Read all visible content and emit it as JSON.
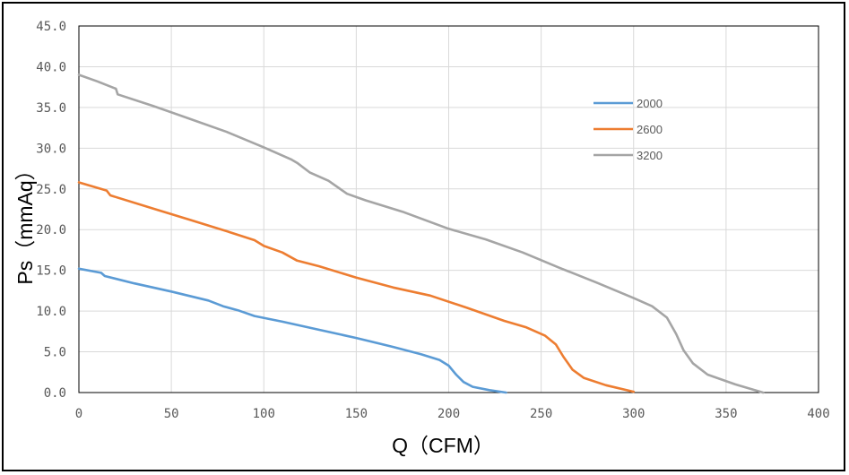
{
  "chart_data": {
    "type": "line",
    "xlabel": "Q（CFM）",
    "ylabel": "Ps（mmAq）",
    "xlim": [
      0,
      400
    ],
    "ylim": [
      0,
      45
    ],
    "x_ticks": [
      "0",
      "50",
      "100",
      "150",
      "200",
      "250",
      "300",
      "350",
      "400"
    ],
    "y_ticks": [
      "0.0",
      "5.0",
      "10.0",
      "15.0",
      "20.0",
      "25.0",
      "30.0",
      "35.0",
      "40.0",
      "45.0"
    ],
    "grid": true,
    "legend_position": "right",
    "series": [
      {
        "name": "2000",
        "color": "#5B9BD5",
        "points": [
          [
            0,
            15.2
          ],
          [
            12,
            14.7
          ],
          [
            14,
            14.3
          ],
          [
            30,
            13.4
          ],
          [
            50,
            12.4
          ],
          [
            70,
            11.3
          ],
          [
            78,
            10.6
          ],
          [
            86,
            10.1
          ],
          [
            95,
            9.4
          ],
          [
            110,
            8.7
          ],
          [
            130,
            7.7
          ],
          [
            150,
            6.7
          ],
          [
            170,
            5.6
          ],
          [
            185,
            4.7
          ],
          [
            195,
            4.0
          ],
          [
            200,
            3.3
          ],
          [
            204,
            2.2
          ],
          [
            208,
            1.3
          ],
          [
            213,
            0.7
          ],
          [
            222,
            0.3
          ],
          [
            231,
            0.0
          ]
        ]
      },
      {
        "name": "2600",
        "color": "#ED7D31",
        "points": [
          [
            0,
            25.8
          ],
          [
            15,
            24.8
          ],
          [
            17,
            24.2
          ],
          [
            40,
            22.6
          ],
          [
            60,
            21.2
          ],
          [
            80,
            19.8
          ],
          [
            95,
            18.7
          ],
          [
            100,
            18.0
          ],
          [
            110,
            17.2
          ],
          [
            118,
            16.2
          ],
          [
            130,
            15.5
          ],
          [
            150,
            14.1
          ],
          [
            170,
            12.9
          ],
          [
            190,
            11.9
          ],
          [
            210,
            10.4
          ],
          [
            230,
            8.8
          ],
          [
            242,
            8.0
          ],
          [
            252,
            7.0
          ],
          [
            258,
            5.9
          ],
          [
            262,
            4.4
          ],
          [
            267,
            2.8
          ],
          [
            273,
            1.8
          ],
          [
            285,
            0.9
          ],
          [
            300,
            0.1
          ]
        ]
      },
      {
        "name": "3200",
        "color": "#A5A5A5",
        "points": [
          [
            0,
            39.0
          ],
          [
            10,
            38.2
          ],
          [
            20,
            37.3
          ],
          [
            21,
            36.6
          ],
          [
            40,
            35.2
          ],
          [
            60,
            33.6
          ],
          [
            80,
            32.0
          ],
          [
            100,
            30.1
          ],
          [
            115,
            28.6
          ],
          [
            118,
            28.2
          ],
          [
            125,
            27.0
          ],
          [
            135,
            26.0
          ],
          [
            145,
            24.4
          ],
          [
            155,
            23.6
          ],
          [
            175,
            22.2
          ],
          [
            200,
            20.1
          ],
          [
            220,
            18.8
          ],
          [
            240,
            17.2
          ],
          [
            260,
            15.3
          ],
          [
            280,
            13.5
          ],
          [
            300,
            11.6
          ],
          [
            310,
            10.6
          ],
          [
            318,
            9.2
          ],
          [
            323,
            7.2
          ],
          [
            327,
            5.2
          ],
          [
            332,
            3.6
          ],
          [
            340,
            2.2
          ],
          [
            355,
            1.0
          ],
          [
            370,
            0.0
          ]
        ]
      }
    ]
  }
}
